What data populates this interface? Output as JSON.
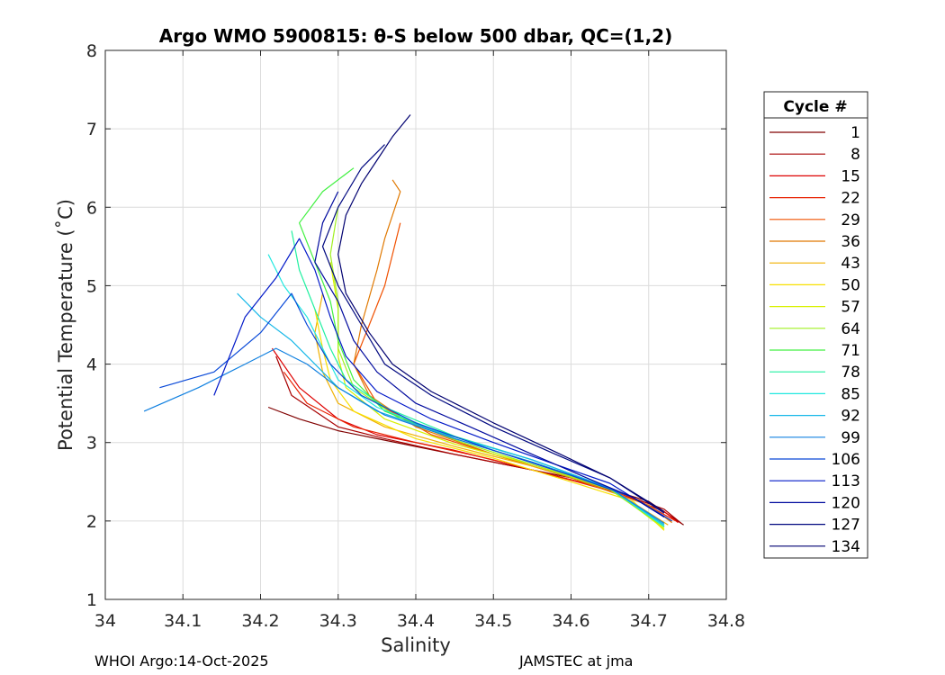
{
  "chart_data": {
    "type": "line",
    "title": "Argo WMO 5900815: θ-S below 500 dbar,  QC=(1,2)",
    "xlabel": "Salinity",
    "ylabel": "Potential Temperature (˚C)",
    "xlim": [
      34.0,
      34.8
    ],
    "ylim": [
      1,
      8
    ],
    "xticks": [
      34,
      34.1,
      34.2,
      34.3,
      34.4,
      34.5,
      34.6,
      34.7,
      34.8
    ],
    "yticks": [
      1,
      2,
      3,
      4,
      5,
      6,
      7,
      8
    ],
    "xtick_labels": [
      "34",
      "34.1",
      "34.2",
      "34.3",
      "34.4",
      "34.5",
      "34.6",
      "34.7",
      "34.8"
    ],
    "ytick_labels": [
      "1",
      "2",
      "3",
      "4",
      "5",
      "6",
      "7",
      "8"
    ],
    "grid": true,
    "legend": {
      "title": "Cycle #",
      "placement": "right",
      "entries": [
        {
          "label": "1",
          "color": "#800000"
        },
        {
          "label": "8",
          "color": "#a80000"
        },
        {
          "label": "15",
          "color": "#de0000"
        },
        {
          "label": "22",
          "color": "#e82000"
        },
        {
          "label": "29",
          "color": "#f05000"
        },
        {
          "label": "36",
          "color": "#e07800"
        },
        {
          "label": "43",
          "color": "#f0b000"
        },
        {
          "label": "50",
          "color": "#f8e000"
        },
        {
          "label": "57",
          "color": "#d8f000"
        },
        {
          "label": "64",
          "color": "#a0f020"
        },
        {
          "label": "71",
          "color": "#40f040"
        },
        {
          "label": "78",
          "color": "#20f0a0"
        },
        {
          "label": "85",
          "color": "#20e8e0"
        },
        {
          "label": "92",
          "color": "#18b8e8"
        },
        {
          "label": "99",
          "color": "#1080e0"
        },
        {
          "label": "106",
          "color": "#0848d8"
        },
        {
          "label": "113",
          "color": "#0018c8"
        },
        {
          "label": "120",
          "color": "#000a9e"
        },
        {
          "label": "127",
          "color": "#000880"
        },
        {
          "label": "134",
          "color": "#000070"
        }
      ]
    },
    "series": [
      {
        "name": "1",
        "color": "#800000",
        "points": [
          [
            34.21,
            3.45
          ],
          [
            34.25,
            3.3
          ],
          [
            34.3,
            3.15
          ],
          [
            34.35,
            3.05
          ],
          [
            34.4,
            2.95
          ],
          [
            34.5,
            2.75
          ],
          [
            34.6,
            2.55
          ],
          [
            34.7,
            2.25
          ],
          [
            34.745,
            1.95
          ]
        ]
      },
      {
        "name": "8",
        "color": "#a80000",
        "points": [
          [
            34.22,
            4.1
          ],
          [
            34.24,
            3.6
          ],
          [
            34.3,
            3.2
          ],
          [
            34.36,
            3.05
          ],
          [
            34.45,
            2.85
          ],
          [
            34.55,
            2.65
          ],
          [
            34.65,
            2.4
          ],
          [
            34.72,
            2.15
          ],
          [
            34.742,
            1.97
          ]
        ]
      },
      {
        "name": "15",
        "color": "#de0000",
        "points": [
          [
            34.215,
            4.2
          ],
          [
            34.25,
            3.7
          ],
          [
            34.3,
            3.3
          ],
          [
            34.35,
            3.1
          ],
          [
            34.45,
            2.9
          ],
          [
            34.55,
            2.65
          ],
          [
            34.65,
            2.4
          ],
          [
            34.72,
            2.12
          ],
          [
            34.738,
            1.98
          ]
        ]
      },
      {
        "name": "22",
        "color": "#e82000",
        "points": [
          [
            34.23,
            3.9
          ],
          [
            34.26,
            3.5
          ],
          [
            34.32,
            3.2
          ],
          [
            34.4,
            3.0
          ],
          [
            34.5,
            2.78
          ],
          [
            34.6,
            2.52
          ],
          [
            34.68,
            2.3
          ],
          [
            34.735,
            2.0
          ]
        ]
      },
      {
        "name": "29",
        "color": "#f05000",
        "points": [
          [
            34.38,
            5.8
          ],
          [
            34.36,
            5.0
          ],
          [
            34.34,
            4.5
          ],
          [
            34.32,
            4.0
          ],
          [
            34.35,
            3.5
          ],
          [
            34.42,
            3.1
          ],
          [
            34.5,
            2.85
          ],
          [
            34.6,
            2.55
          ],
          [
            34.68,
            2.3
          ],
          [
            34.73,
            2.0
          ]
        ]
      },
      {
        "name": "36",
        "color": "#e07800",
        "points": [
          [
            34.37,
            6.35
          ],
          [
            34.38,
            6.2
          ],
          [
            34.36,
            5.6
          ],
          [
            34.35,
            5.2
          ],
          [
            34.33,
            4.5
          ],
          [
            34.32,
            4.0
          ],
          [
            34.34,
            3.6
          ],
          [
            34.4,
            3.2
          ],
          [
            34.5,
            2.85
          ],
          [
            34.6,
            2.55
          ],
          [
            34.7,
            2.2
          ],
          [
            34.73,
            1.98
          ]
        ]
      },
      {
        "name": "43",
        "color": "#f0b000",
        "points": [
          [
            34.28,
            4.9
          ],
          [
            34.27,
            4.4
          ],
          [
            34.28,
            3.9
          ],
          [
            34.3,
            3.5
          ],
          [
            34.36,
            3.2
          ],
          [
            34.45,
            2.95
          ],
          [
            34.55,
            2.7
          ],
          [
            34.65,
            2.42
          ],
          [
            34.725,
            1.95
          ]
        ]
      },
      {
        "name": "50",
        "color": "#f8e000",
        "points": [
          [
            34.27,
            4.7
          ],
          [
            34.28,
            4.2
          ],
          [
            34.29,
            3.8
          ],
          [
            34.32,
            3.4
          ],
          [
            34.4,
            3.05
          ],
          [
            34.5,
            2.8
          ],
          [
            34.6,
            2.5
          ],
          [
            34.68,
            2.25
          ],
          [
            34.72,
            1.88
          ]
        ]
      },
      {
        "name": "57",
        "color": "#d8f000",
        "points": [
          [
            34.29,
            5.3
          ],
          [
            34.3,
            4.7
          ],
          [
            34.3,
            4.1
          ],
          [
            34.31,
            3.7
          ],
          [
            34.36,
            3.3
          ],
          [
            34.45,
            2.98
          ],
          [
            34.55,
            2.72
          ],
          [
            34.65,
            2.42
          ],
          [
            34.72,
            1.9
          ]
        ]
      },
      {
        "name": "64",
        "color": "#a0f020",
        "points": [
          [
            34.3,
            6.0
          ],
          [
            34.29,
            5.4
          ],
          [
            34.3,
            4.8
          ],
          [
            34.3,
            4.2
          ],
          [
            34.32,
            3.7
          ],
          [
            34.38,
            3.3
          ],
          [
            34.46,
            3.0
          ],
          [
            34.55,
            2.72
          ],
          [
            34.65,
            2.4
          ],
          [
            34.72,
            1.92
          ]
        ]
      },
      {
        "name": "71",
        "color": "#40f040",
        "points": [
          [
            34.32,
            6.5
          ],
          [
            34.28,
            6.2
          ],
          [
            34.25,
            5.8
          ],
          [
            34.27,
            5.3
          ],
          [
            34.29,
            4.8
          ],
          [
            34.3,
            4.3
          ],
          [
            34.32,
            3.8
          ],
          [
            34.36,
            3.4
          ],
          [
            34.45,
            3.05
          ],
          [
            34.55,
            2.75
          ],
          [
            34.65,
            2.42
          ],
          [
            34.72,
            1.93
          ]
        ]
      },
      {
        "name": "78",
        "color": "#20f0a0",
        "points": [
          [
            34.24,
            5.7
          ],
          [
            34.25,
            5.2
          ],
          [
            34.27,
            4.7
          ],
          [
            34.29,
            4.2
          ],
          [
            34.31,
            3.8
          ],
          [
            34.36,
            3.45
          ],
          [
            34.45,
            3.08
          ],
          [
            34.55,
            2.78
          ],
          [
            34.65,
            2.42
          ],
          [
            34.72,
            1.95
          ]
        ]
      },
      {
        "name": "85",
        "color": "#20e8e0",
        "points": [
          [
            34.21,
            5.4
          ],
          [
            34.23,
            5.0
          ],
          [
            34.26,
            4.6
          ],
          [
            34.28,
            4.2
          ],
          [
            34.3,
            3.8
          ],
          [
            34.35,
            3.45
          ],
          [
            34.44,
            3.1
          ],
          [
            34.55,
            2.78
          ],
          [
            34.65,
            2.42
          ],
          [
            34.72,
            1.93
          ]
        ]
      },
      {
        "name": "92",
        "color": "#18b8e8",
        "points": [
          [
            34.17,
            4.9
          ],
          [
            34.2,
            4.6
          ],
          [
            34.24,
            4.3
          ],
          [
            34.27,
            4.0
          ],
          [
            34.3,
            3.7
          ],
          [
            34.35,
            3.4
          ],
          [
            34.44,
            3.1
          ],
          [
            34.55,
            2.78
          ],
          [
            34.65,
            2.42
          ],
          [
            34.72,
            1.95
          ]
        ]
      },
      {
        "name": "99",
        "color": "#1080e0",
        "points": [
          [
            34.05,
            3.4
          ],
          [
            34.12,
            3.7
          ],
          [
            34.18,
            4.0
          ],
          [
            34.22,
            4.2
          ],
          [
            34.26,
            4.0
          ],
          [
            34.3,
            3.7
          ],
          [
            34.36,
            3.35
          ],
          [
            34.45,
            3.05
          ],
          [
            34.55,
            2.75
          ],
          [
            34.65,
            2.42
          ],
          [
            34.72,
            1.97
          ]
        ]
      },
      {
        "name": "106",
        "color": "#0848d8",
        "points": [
          [
            34.07,
            3.7
          ],
          [
            34.14,
            3.9
          ],
          [
            34.2,
            4.4
          ],
          [
            34.24,
            4.9
          ],
          [
            34.26,
            4.5
          ],
          [
            34.29,
            4.0
          ],
          [
            34.33,
            3.6
          ],
          [
            34.4,
            3.25
          ],
          [
            34.5,
            2.9
          ],
          [
            34.6,
            2.58
          ],
          [
            34.68,
            2.3
          ],
          [
            34.73,
            2.0
          ]
        ]
      },
      {
        "name": "113",
        "color": "#0018c8",
        "points": [
          [
            34.14,
            3.6
          ],
          [
            34.18,
            4.6
          ],
          [
            34.22,
            5.1
          ],
          [
            34.25,
            5.6
          ],
          [
            34.27,
            5.2
          ],
          [
            34.29,
            4.6
          ],
          [
            34.31,
            4.1
          ],
          [
            34.35,
            3.65
          ],
          [
            34.42,
            3.3
          ],
          [
            34.5,
            3.0
          ],
          [
            34.58,
            2.72
          ],
          [
            34.65,
            2.48
          ],
          [
            34.72,
            2.05
          ]
        ]
      },
      {
        "name": "120",
        "color": "#000a9e",
        "points": [
          [
            34.3,
            6.2
          ],
          [
            34.28,
            5.8
          ],
          [
            34.27,
            5.3
          ],
          [
            34.3,
            4.8
          ],
          [
            34.32,
            4.3
          ],
          [
            34.35,
            3.9
          ],
          [
            34.4,
            3.5
          ],
          [
            34.47,
            3.2
          ],
          [
            34.55,
            2.85
          ],
          [
            34.62,
            2.55
          ],
          [
            34.68,
            2.3
          ],
          [
            34.72,
            2.05
          ]
        ]
      },
      {
        "name": "127",
        "color": "#000880",
        "points": [
          [
            34.36,
            6.8
          ],
          [
            34.33,
            6.5
          ],
          [
            34.3,
            6.0
          ],
          [
            34.28,
            5.5
          ],
          [
            34.3,
            5.0
          ],
          [
            34.33,
            4.5
          ],
          [
            34.36,
            4.0
          ],
          [
            34.42,
            3.6
          ],
          [
            34.5,
            3.2
          ],
          [
            34.58,
            2.85
          ],
          [
            34.65,
            2.55
          ],
          [
            34.72,
            2.1
          ]
        ]
      },
      {
        "name": "134",
        "color": "#000070",
        "points": [
          [
            34.393,
            7.18
          ],
          [
            34.37,
            6.9
          ],
          [
            34.35,
            6.6
          ],
          [
            34.33,
            6.3
          ],
          [
            34.31,
            5.9
          ],
          [
            34.3,
            5.4
          ],
          [
            34.31,
            4.9
          ],
          [
            34.34,
            4.4
          ],
          [
            34.37,
            4.0
          ],
          [
            34.42,
            3.65
          ],
          [
            34.5,
            3.25
          ],
          [
            34.58,
            2.88
          ],
          [
            34.65,
            2.55
          ],
          [
            34.72,
            2.12
          ]
        ]
      }
    ]
  },
  "footer": {
    "left": "WHOI Argo:14-Oct-2025",
    "right": "JAMSTEC at jma"
  }
}
